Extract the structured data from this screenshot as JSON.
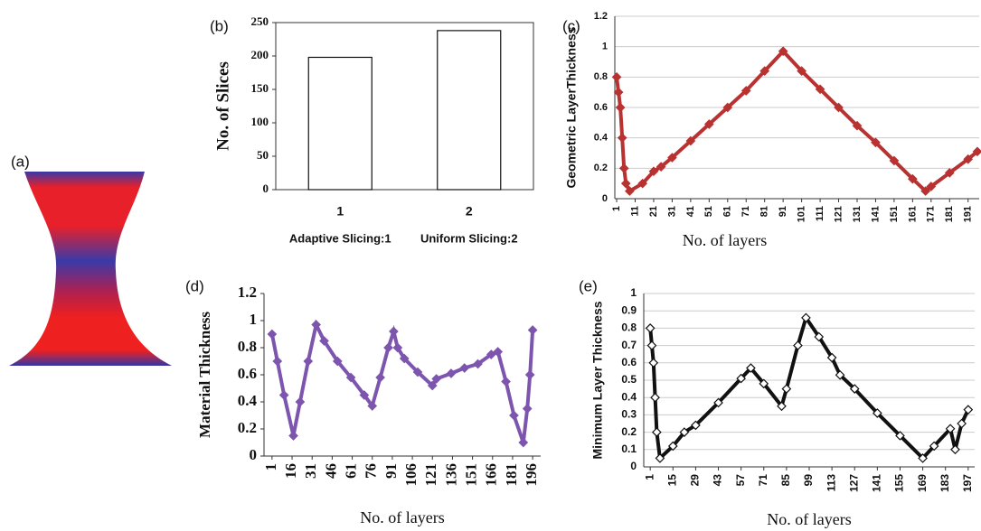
{
  "image_panel": {
    "label": "(a)"
  },
  "chart_data": [
    {
      "type": "bar",
      "panel_label": "(b)",
      "y_label": "No. of Slices",
      "categories": [
        "1",
        "2"
      ],
      "values": [
        198,
        238
      ],
      "color": "#ffffff",
      "annotations": [
        "Adaptive Slicing:1",
        "Uniform Slicing:2"
      ],
      "ylim": [
        0,
        250
      ],
      "yticks": [
        0,
        50,
        100,
        150,
        200,
        250
      ],
      "grid": false
    },
    {
      "type": "line",
      "panel_label": "(c)",
      "y_label": "Geometric LayerThickness",
      "x_label": "No. of layers",
      "x": [
        1,
        2,
        3,
        4,
        5,
        6,
        8,
        15,
        21,
        25,
        31,
        41,
        51,
        61,
        71,
        81,
        91,
        101,
        111,
        121,
        131,
        141,
        151,
        161,
        168,
        171,
        181,
        191,
        196
      ],
      "values": [
        0.8,
        0.7,
        0.6,
        0.4,
        0.2,
        0.1,
        0.05,
        0.1,
        0.18,
        0.21,
        0.27,
        0.38,
        0.49,
        0.6,
        0.71,
        0.84,
        0.97,
        0.84,
        0.72,
        0.6,
        0.48,
        0.37,
        0.25,
        0.13,
        0.05,
        0.08,
        0.17,
        0.26,
        0.31
      ],
      "color": "#b83232",
      "marker": "filled",
      "xlim": [
        0,
        197
      ],
      "xticks": [
        1,
        11,
        21,
        31,
        41,
        51,
        61,
        71,
        81,
        91,
        101,
        111,
        121,
        131,
        141,
        151,
        161,
        171,
        181,
        191
      ],
      "ylim": [
        0,
        1.2
      ],
      "yticks": [
        0,
        0.2,
        0.4,
        0.6,
        0.8,
        1,
        1.2
      ],
      "grid": true
    },
    {
      "type": "line",
      "panel_label": "(d)",
      "y_label": "Material Thickness",
      "x_label": "No. of layers",
      "x": [
        1,
        5,
        10,
        17,
        22,
        28,
        34,
        40,
        50,
        60,
        70,
        76,
        82,
        88,
        92,
        95,
        100,
        110,
        121,
        124,
        135,
        145,
        155,
        165,
        170,
        176,
        182,
        189,
        192,
        194,
        196
      ],
      "values": [
        0.9,
        0.7,
        0.45,
        0.15,
        0.4,
        0.7,
        0.97,
        0.85,
        0.7,
        0.58,
        0.45,
        0.37,
        0.58,
        0.8,
        0.92,
        0.8,
        0.72,
        0.62,
        0.52,
        0.57,
        0.61,
        0.65,
        0.68,
        0.75,
        0.77,
        0.55,
        0.3,
        0.1,
        0.35,
        0.6,
        0.93
      ],
      "color": "#7d55ae",
      "marker": "filled",
      "xlim": [
        -5,
        202
      ],
      "xticks": [
        1,
        16,
        31,
        46,
        61,
        76,
        91,
        106,
        121,
        136,
        151,
        166,
        181,
        196
      ],
      "ylim": [
        0,
        1.2
      ],
      "yticks": [
        0,
        0.2,
        0.4,
        0.6,
        0.8,
        1,
        1.2
      ],
      "grid": false
    },
    {
      "type": "line",
      "panel_label": "(e)",
      "y_label": "Minimum Layer Thickness",
      "x_label": "No. of layers",
      "x": [
        1,
        2,
        3,
        4,
        5,
        7,
        15,
        22,
        29,
        43,
        57,
        63,
        71,
        82,
        85,
        92,
        97,
        105,
        113,
        118,
        127,
        141,
        155,
        169,
        176,
        186,
        189,
        193,
        197
      ],
      "values": [
        0.8,
        0.7,
        0.6,
        0.4,
        0.2,
        0.05,
        0.12,
        0.2,
        0.24,
        0.37,
        0.51,
        0.57,
        0.48,
        0.35,
        0.45,
        0.7,
        0.86,
        0.75,
        0.63,
        0.53,
        0.45,
        0.31,
        0.18,
        0.05,
        0.12,
        0.22,
        0.1,
        0.25,
        0.33
      ],
      "color": "#111111",
      "marker": "hollow",
      "xlim": [
        -3,
        201
      ],
      "xticks": [
        1,
        15,
        29,
        43,
        57,
        71,
        85,
        99,
        113,
        127,
        141,
        155,
        169,
        183,
        197
      ],
      "ylim": [
        0,
        1
      ],
      "yticks": [
        0,
        0.1,
        0.2,
        0.3,
        0.4,
        0.5,
        0.6,
        0.7,
        0.8,
        0.9,
        1
      ],
      "grid": true
    }
  ]
}
